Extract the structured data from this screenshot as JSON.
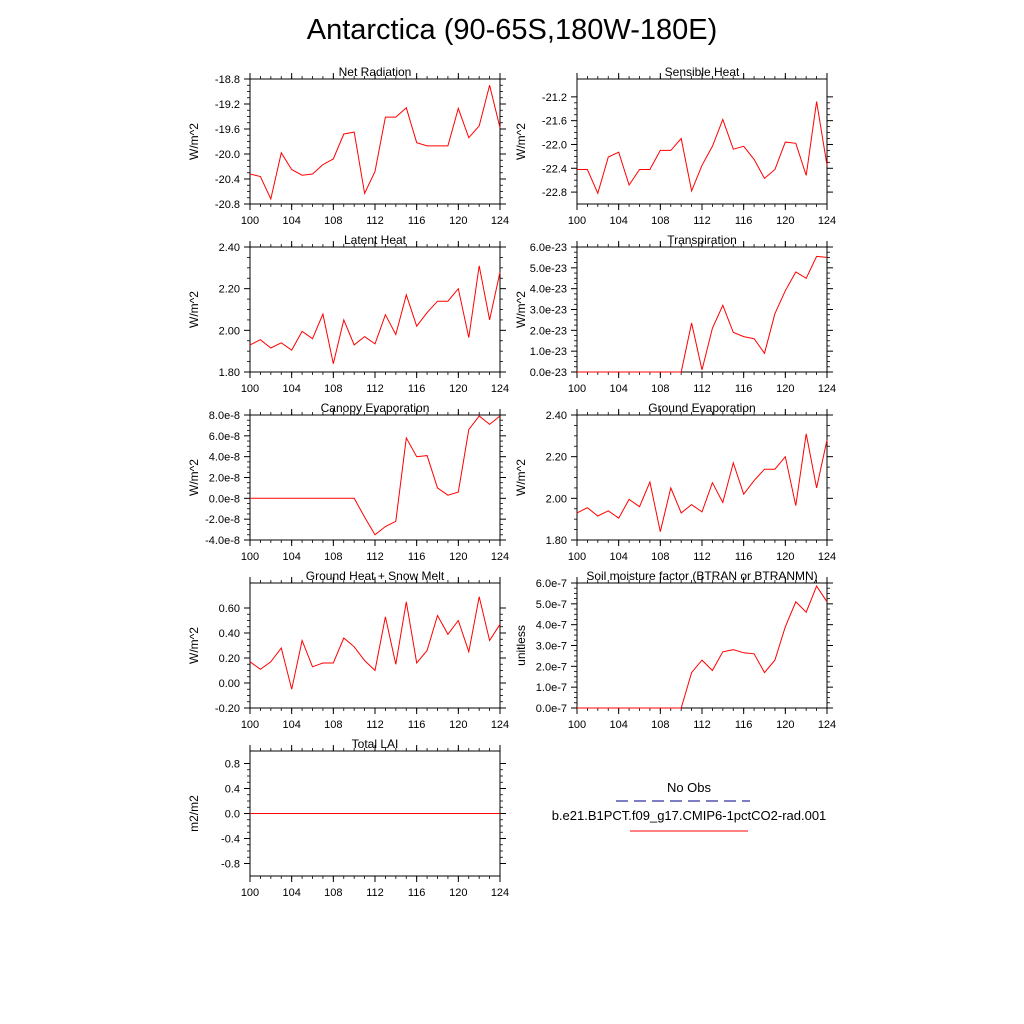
{
  "page": {
    "title": "Antarctica (90-65S,180W-180E)"
  },
  "legend": {
    "obs_label": "No Obs",
    "obs_color": "#3030a0",
    "case_label": "b.e21.B1PCT.f09_g17.CMIP6-1pctCO2-rad.001",
    "case_color": "#ff0000"
  },
  "chart_data": [
    {
      "type": "line",
      "title": "Net Radiation",
      "ylabel": "W/m^2",
      "xlim": [
        100,
        124
      ],
      "ylim": [
        -20.8,
        -18.8
      ],
      "xticks": [
        100,
        104,
        108,
        112,
        116,
        120,
        124
      ],
      "yticks": [
        "-20.8",
        "-20.4",
        "-20.0",
        "-19.6",
        "-19.2",
        "-18.8"
      ],
      "x": [
        100,
        101,
        102,
        103,
        104,
        105,
        106,
        107,
        108,
        109,
        110,
        111,
        112,
        113,
        114,
        115,
        116,
        117,
        118,
        119,
        120,
        121,
        122,
        123,
        124
      ],
      "series": [
        {
          "color": "#ff0000",
          "values": [
            -20.32,
            -20.36,
            -20.72,
            -19.98,
            -20.25,
            -20.34,
            -20.32,
            -20.17,
            -20.08,
            -19.68,
            -19.65,
            -20.63,
            -20.28,
            -19.41,
            -19.41,
            -19.26,
            -19.82,
            -19.87,
            -19.87,
            -19.87,
            -19.27,
            -19.74,
            -19.55,
            -18.9,
            -19.58
          ]
        }
      ]
    },
    {
      "type": "line",
      "title": "Sensible Heat",
      "ylabel": "W/m^2",
      "xlim": [
        100,
        124
      ],
      "ylim": [
        -23.0,
        -20.9
      ],
      "xticks": [
        100,
        104,
        108,
        112,
        116,
        120,
        124
      ],
      "yticks": [
        "-22.8",
        "-22.4",
        "-22.0",
        "-21.6",
        "-21.2"
      ],
      "x": [
        100,
        101,
        102,
        103,
        104,
        105,
        106,
        107,
        108,
        109,
        110,
        111,
        112,
        113,
        114,
        115,
        116,
        117,
        118,
        119,
        120,
        121,
        122,
        123,
        124
      ],
      "series": [
        {
          "color": "#ff0000",
          "values": [
            -22.42,
            -22.42,
            -22.82,
            -22.21,
            -22.13,
            -22.68,
            -22.42,
            -22.42,
            -22.1,
            -22.1,
            -21.9,
            -22.78,
            -22.35,
            -22.03,
            -21.58,
            -22.08,
            -22.03,
            -22.25,
            -22.57,
            -22.42,
            -21.96,
            -21.98,
            -22.52,
            -21.28,
            -22.35
          ]
        }
      ]
    },
    {
      "type": "line",
      "title": "Latent Heat",
      "ylabel": "W/m^2",
      "xlim": [
        100,
        124
      ],
      "ylim": [
        1.8,
        2.4
      ],
      "xticks": [
        100,
        104,
        108,
        112,
        116,
        120,
        124
      ],
      "yticks": [
        "1.80",
        "2.00",
        "2.20",
        "2.40"
      ],
      "x": [
        100,
        101,
        102,
        103,
        104,
        105,
        106,
        107,
        108,
        109,
        110,
        111,
        112,
        113,
        114,
        115,
        116,
        117,
        118,
        119,
        120,
        121,
        122,
        123,
        124
      ],
      "series": [
        {
          "color": "#ff0000",
          "values": [
            1.93,
            1.955,
            1.915,
            1.94,
            1.905,
            1.995,
            1.96,
            2.078,
            1.84,
            2.05,
            1.93,
            1.97,
            1.935,
            2.075,
            1.98,
            2.17,
            2.02,
            2.085,
            2.14,
            2.14,
            2.2,
            1.965,
            2.31,
            2.05,
            2.28
          ]
        }
      ]
    },
    {
      "type": "line",
      "title": "Transpiration",
      "ylabel": "W/m^2",
      "xlim": [
        100,
        124
      ],
      "ylim": [
        0,
        6e-23
      ],
      "xticks": [
        100,
        104,
        108,
        112,
        116,
        120,
        124
      ],
      "yticks": [
        "0.0e-23",
        "1.0e-23",
        "2.0e-23",
        "3.0e-23",
        "4.0e-23",
        "5.0e-23",
        "6.0e-23"
      ],
      "x": [
        100,
        101,
        102,
        103,
        104,
        105,
        106,
        107,
        108,
        109,
        110,
        111,
        112,
        113,
        114,
        115,
        116,
        117,
        118,
        119,
        120,
        121,
        122,
        123,
        124
      ],
      "series": [
        {
          "color": "#ff0000",
          "values": [
            0,
            0,
            0,
            0,
            0,
            0,
            0,
            0,
            0,
            0,
            0,
            2.35e-23,
            1e-24,
            2.1e-23,
            3.2e-23,
            1.9e-23,
            1.7e-23,
            1.6e-23,
            9e-24,
            2.8e-23,
            3.9e-23,
            4.8e-23,
            4.5e-23,
            5.55e-23,
            5.5e-23
          ]
        }
      ]
    },
    {
      "type": "line",
      "title": "Canopy Evaporation",
      "ylabel": "W/m^2",
      "xlim": [
        100,
        124
      ],
      "ylim": [
        -4e-08,
        8e-08
      ],
      "xticks": [
        100,
        104,
        108,
        112,
        116,
        120,
        124
      ],
      "yticks": [
        "-4.0e-8",
        "-2.0e-8",
        "0.0e-8",
        "2.0e-8",
        "4.0e-8",
        "6.0e-8",
        "8.0e-8"
      ],
      "x": [
        100,
        101,
        102,
        103,
        104,
        105,
        106,
        107,
        108,
        109,
        110,
        111,
        112,
        113,
        114,
        115,
        116,
        117,
        118,
        119,
        120,
        121,
        122,
        123,
        124
      ],
      "series": [
        {
          "color": "#ff0000",
          "values": [
            0,
            0,
            0,
            0,
            0,
            0,
            0,
            0,
            0,
            0,
            0,
            -1.8e-08,
            -3.5e-08,
            -2.7e-08,
            -2.2e-08,
            5.8e-08,
            4e-08,
            4.1e-08,
            1e-08,
            3e-09,
            6e-09,
            6.6e-08,
            7.9e-08,
            7.1e-08,
            7.9e-08
          ]
        }
      ]
    },
    {
      "type": "line",
      "title": "Ground Evaporation",
      "ylabel": "W/m^2",
      "xlim": [
        100,
        124
      ],
      "ylim": [
        1.8,
        2.4
      ],
      "xticks": [
        100,
        104,
        108,
        112,
        116,
        120,
        124
      ],
      "yticks": [
        "1.80",
        "2.00",
        "2.20",
        "2.40"
      ],
      "x": [
        100,
        101,
        102,
        103,
        104,
        105,
        106,
        107,
        108,
        109,
        110,
        111,
        112,
        113,
        114,
        115,
        116,
        117,
        118,
        119,
        120,
        121,
        122,
        123,
        124
      ],
      "series": [
        {
          "color": "#ff0000",
          "values": [
            1.93,
            1.955,
            1.915,
            1.94,
            1.905,
            1.995,
            1.96,
            2.078,
            1.84,
            2.05,
            1.93,
            1.97,
            1.935,
            2.075,
            1.98,
            2.17,
            2.02,
            2.085,
            2.14,
            2.14,
            2.2,
            1.965,
            2.31,
            2.05,
            2.28
          ]
        }
      ]
    },
    {
      "type": "line",
      "title": "Ground Heat + Snow Melt",
      "ylabel": "W/m^2",
      "xlim": [
        100,
        124
      ],
      "ylim": [
        -0.2,
        0.8
      ],
      "xticks": [
        100,
        104,
        108,
        112,
        116,
        120,
        124
      ],
      "yticks": [
        "-0.20",
        "0.00",
        "0.20",
        "0.40",
        "0.60"
      ],
      "x": [
        100,
        101,
        102,
        103,
        104,
        105,
        106,
        107,
        108,
        109,
        110,
        111,
        112,
        113,
        114,
        115,
        116,
        117,
        118,
        119,
        120,
        121,
        122,
        123,
        124
      ],
      "series": [
        {
          "color": "#ff0000",
          "values": [
            0.17,
            0.11,
            0.17,
            0.28,
            -0.05,
            0.34,
            0.13,
            0.16,
            0.16,
            0.36,
            0.29,
            0.18,
            0.1,
            0.53,
            0.15,
            0.65,
            0.16,
            0.26,
            0.54,
            0.39,
            0.5,
            0.25,
            0.69,
            0.34,
            0.47
          ]
        }
      ]
    },
    {
      "type": "line",
      "title": "Soil moisture factor (BTRAN or BTRANMN)",
      "ylabel": "unitless",
      "xlim": [
        100,
        124
      ],
      "ylim": [
        0,
        6e-07
      ],
      "xticks": [
        100,
        104,
        108,
        112,
        116,
        120,
        124
      ],
      "yticks": [
        "0.0e-7",
        "1.0e-7",
        "2.0e-7",
        "3.0e-7",
        "4.0e-7",
        "5.0e-7",
        "6.0e-7"
      ],
      "x": [
        100,
        101,
        102,
        103,
        104,
        105,
        106,
        107,
        108,
        109,
        110,
        111,
        112,
        113,
        114,
        115,
        116,
        117,
        118,
        119,
        120,
        121,
        122,
        123,
        124
      ],
      "series": [
        {
          "color": "#ff0000",
          "values": [
            0,
            0,
            0,
            0,
            0,
            0,
            0,
            0,
            0,
            0,
            0,
            1.7e-07,
            2.3e-07,
            1.8e-07,
            2.7e-07,
            2.8e-07,
            2.65e-07,
            2.6e-07,
            1.7e-07,
            2.3e-07,
            3.9e-07,
            5.1e-07,
            4.6e-07,
            5.85e-07,
            5.1e-07
          ]
        }
      ]
    },
    {
      "type": "line",
      "title": "Total LAI",
      "ylabel": "m2/m2",
      "xlim": [
        100,
        124
      ],
      "ylim": [
        -1.0,
        1.0
      ],
      "xticks": [
        100,
        104,
        108,
        112,
        116,
        120,
        124
      ],
      "yticks": [
        "-0.8",
        "-0.4",
        "0.0",
        "0.4",
        "0.8"
      ],
      "x": [
        100,
        101,
        102,
        103,
        104,
        105,
        106,
        107,
        108,
        109,
        110,
        111,
        112,
        113,
        114,
        115,
        116,
        117,
        118,
        119,
        120,
        121,
        122,
        123,
        124
      ],
      "series": [
        {
          "color": "#ff0000",
          "values": [
            0,
            0,
            0,
            0,
            0,
            0,
            0,
            0,
            0,
            0,
            0,
            0,
            0,
            0,
            0,
            0,
            0,
            0,
            0,
            0,
            0,
            0,
            0,
            0,
            0
          ]
        }
      ]
    }
  ]
}
